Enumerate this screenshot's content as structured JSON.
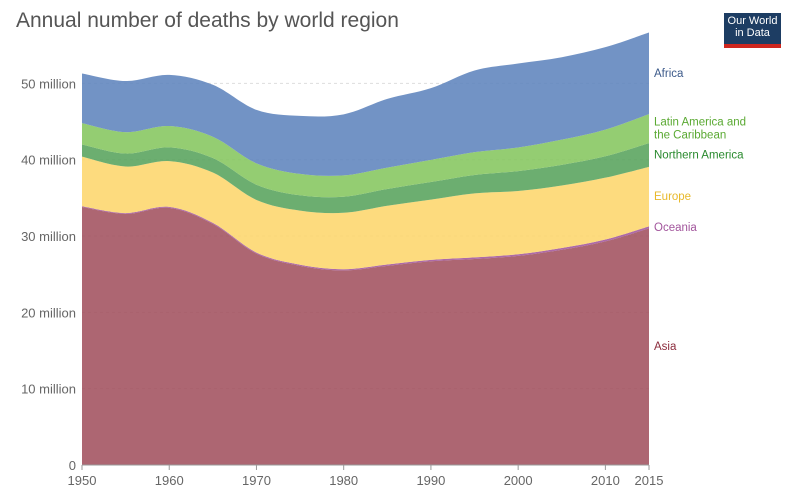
{
  "title": "Annual number of deaths by world region",
  "logo": {
    "line1": "Our World",
    "line2": "in Data"
  },
  "chart_data": {
    "type": "area",
    "title": "Annual number of deaths by world region",
    "stacked": true,
    "x": [
      1950,
      1955,
      1960,
      1965,
      1970,
      1975,
      1980,
      1985,
      1990,
      1995,
      2000,
      2005,
      2010,
      2015
    ],
    "xticks": [
      1950,
      1960,
      1970,
      1980,
      1990,
      2000,
      2010,
      2015
    ],
    "yticks": [
      0,
      10000000,
      20000000,
      30000000,
      40000000,
      50000000
    ],
    "ytick_labels": [
      "0",
      "10 million",
      "20 million",
      "30 million",
      "40 million",
      "50 million"
    ],
    "xlim": [
      1950,
      2015
    ],
    "ylim": [
      0,
      57000000
    ],
    "grid": "horizontal dashed",
    "series": [
      {
        "name": "Asia",
        "color": "#a2515e",
        "values": [
          33800000,
          32900000,
          33700000,
          31600000,
          27700000,
          26100000,
          25500000,
          26100000,
          26700000,
          27000000,
          27400000,
          28200000,
          29300000,
          31000000
        ]
      },
      {
        "name": "Oceania",
        "color": "#a2559c",
        "values": [
          100000,
          110000,
          120000,
          120000,
          130000,
          140000,
          150000,
          170000,
          180000,
          200000,
          210000,
          230000,
          250000,
          270000
        ]
      },
      {
        "name": "Europe",
        "color": "#fdd66c",
        "values": [
          6500000,
          6100000,
          6000000,
          6600000,
          6900000,
          7100000,
          7400000,
          7700000,
          7900000,
          8400000,
          8300000,
          8200000,
          8100000,
          7800000
        ]
      },
      {
        "name": "Northern America",
        "color": "#58a35c",
        "values": [
          1600000,
          1700000,
          1800000,
          1900000,
          2000000,
          2000000,
          2100000,
          2200000,
          2300000,
          2400000,
          2600000,
          2700000,
          2800000,
          3100000
        ]
      },
      {
        "name": "Latin America and the Caribbean",
        "color": "#85c65f",
        "values": [
          2800000,
          2800000,
          2800000,
          2800000,
          2800000,
          2800000,
          2800000,
          2800000,
          2900000,
          3000000,
          3100000,
          3300000,
          3500000,
          3800000
        ]
      },
      {
        "name": "Africa",
        "color": "#5f84bd",
        "values": [
          6500000,
          6700000,
          6700000,
          6800000,
          7000000,
          7600000,
          8000000,
          9000000,
          9400000,
          10700000,
          11000000,
          10800000,
          10800000,
          10700000
        ]
      }
    ],
    "label_colors": {
      "Africa": "#3c5a8a",
      "Latin America and the Caribbean": "#5aa932",
      "Northern America": "#2a8a2e",
      "Europe": "#e8b92a",
      "Oceania": "#a2559c",
      "Asia": "#8c2c3d"
    }
  }
}
